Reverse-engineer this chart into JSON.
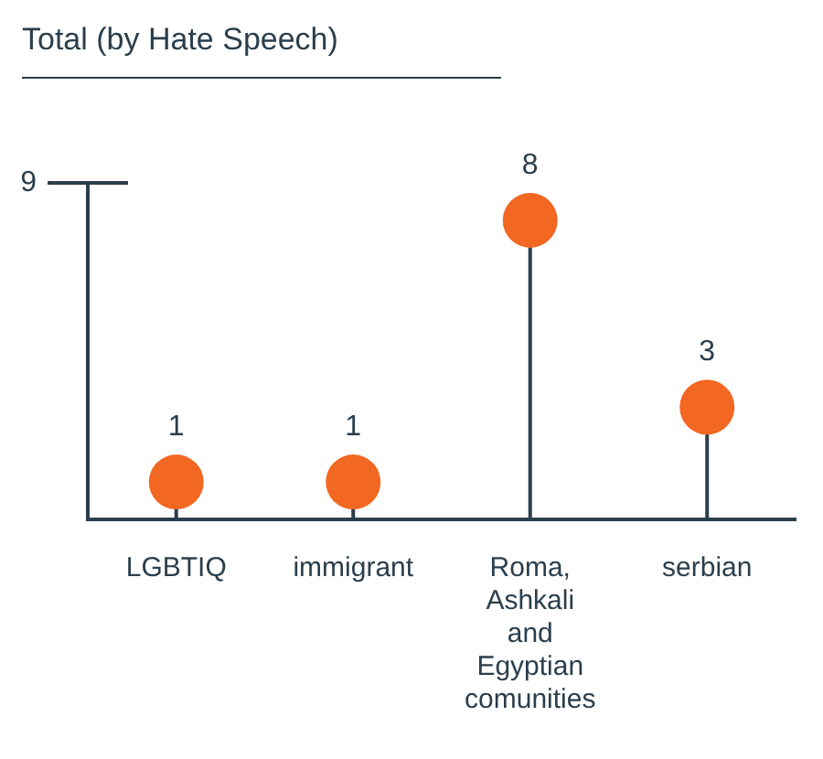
{
  "chart_data": {
    "type": "lollipop",
    "title": "Total (by Hate Speech)",
    "categories": [
      "LGBTIQ",
      "immigrant",
      "Roma, Ashkali and Egyptian comunities",
      "serbian"
    ],
    "values": [
      1,
      1,
      8,
      3
    ],
    "color": "#f26722",
    "ylim": [
      0,
      9
    ],
    "annotations": [
      "9"
    ],
    "data_labels": true,
    "legend": false
  }
}
